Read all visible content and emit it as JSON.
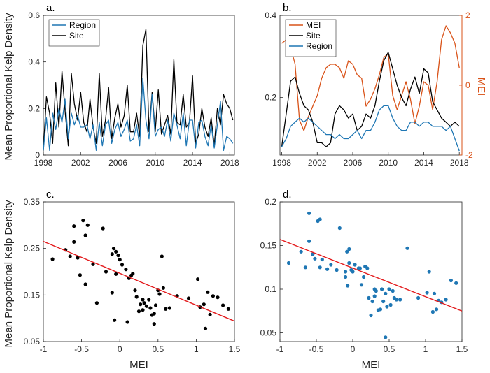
{
  "shared": {
    "ylabel": "Mean Proportional Kelp Density",
    "mei_label": "MEI"
  },
  "chart_data": [
    {
      "panel": "a.",
      "type": "line",
      "xlim": [
        1998,
        2018.5
      ],
      "ylim": [
        0,
        0.6
      ],
      "xticks": [
        "1998",
        "2002",
        "2006",
        "2010",
        "2014",
        "2018"
      ],
      "xtick_values": [
        1998,
        2002,
        2006,
        2010,
        2014,
        2018
      ],
      "yticks": [
        "0",
        "0.2",
        "0.4",
        "0.6"
      ],
      "ytick_values": [
        0,
        0.2,
        0.4,
        0.6
      ],
      "legend": {
        "position": "top-left",
        "entries": [
          "Region",
          "Site"
        ]
      },
      "series": [
        {
          "name": "Site",
          "color": "#000000",
          "x": [
            1998,
            1998.33,
            1998.67,
            1999,
            1999.33,
            1999.67,
            2000,
            2000.33,
            2000.67,
            2001,
            2001.33,
            2001.67,
            2002,
            2002.33,
            2002.67,
            2003,
            2003.33,
            2003.67,
            2004,
            2004.33,
            2004.67,
            2005,
            2005.33,
            2005.67,
            2006,
            2006.33,
            2006.67,
            2007,
            2007.33,
            2007.67,
            2008,
            2008.33,
            2008.67,
            2009,
            2009.33,
            2009.67,
            2010,
            2010.33,
            2010.67,
            2011,
            2011.33,
            2011.67,
            2012,
            2012.33,
            2012.67,
            2013,
            2013.33,
            2013.67,
            2014,
            2014.33,
            2014.67,
            2015,
            2015.33,
            2015.67,
            2016,
            2016.33,
            2016.67,
            2017,
            2017.33,
            2017.67,
            2018,
            2018.33
          ],
          "values": [
            0.02,
            0.25,
            0.18,
            0.05,
            0.31,
            0.12,
            0.36,
            0.19,
            0.04,
            0.35,
            0.22,
            0.15,
            0.27,
            0.14,
            0.1,
            0.24,
            0.12,
            0.05,
            0.35,
            0.08,
            0.15,
            0.29,
            0.07,
            0.16,
            0.22,
            0.12,
            0.17,
            0.3,
            0.1,
            0.1,
            0.18,
            0.08,
            0.47,
            0.54,
            0.1,
            0.27,
            0.1,
            0.28,
            0.09,
            0.13,
            0.17,
            0.09,
            0.41,
            0.14,
            0.13,
            0.26,
            0.12,
            0.14,
            0.34,
            0.05,
            0.09,
            0.2,
            0.12,
            0.08,
            0.16,
            0.04,
            0.2,
            0.13,
            0.26,
            0.22,
            0.2,
            0.15
          ]
        },
        {
          "name": "Region",
          "color": "#1f77b4",
          "x": [
            1998,
            1998.33,
            1998.67,
            1999,
            1999.33,
            1999.67,
            2000,
            2000.33,
            2000.67,
            2001,
            2001.33,
            2001.67,
            2002,
            2002.33,
            2002.67,
            2003,
            2003.33,
            2003.67,
            2004,
            2004.33,
            2004.67,
            2005,
            2005.33,
            2005.67,
            2006,
            2006.33,
            2006.67,
            2007,
            2007.33,
            2007.67,
            2008,
            2008.33,
            2008.67,
            2009,
            2009.33,
            2009.67,
            2010,
            2010.33,
            2010.67,
            2011,
            2011.33,
            2011.67,
            2012,
            2012.33,
            2012.67,
            2013,
            2013.33,
            2013.67,
            2014,
            2014.33,
            2014.67,
            2015,
            2015.33,
            2015.67,
            2016,
            2016.33,
            2016.67,
            2017,
            2017.33,
            2017.67,
            2018,
            2018.33
          ],
          "values": [
            0.02,
            0.16,
            0.02,
            0.18,
            0.11,
            0.2,
            0.14,
            0.24,
            0.07,
            0.18,
            0.13,
            0.17,
            0.12,
            0.12,
            0.13,
            0.07,
            0.13,
            0.02,
            0.14,
            0.04,
            0.13,
            0.15,
            0.05,
            0.11,
            0.14,
            0.08,
            0.11,
            0.15,
            0.06,
            0.07,
            0.13,
            0.04,
            0.33,
            0.15,
            0.07,
            0.26,
            0.08,
            0.11,
            0.12,
            0.08,
            0.15,
            0.06,
            0.18,
            0.13,
            0.07,
            0.18,
            0.04,
            0.15,
            0.15,
            0.03,
            0.14,
            0.15,
            0.08,
            0.04,
            0.13,
            0.03,
            0.13,
            0.23,
            0.02,
            0.08,
            0.07,
            0.05
          ]
        }
      ]
    },
    {
      "panel": "b.",
      "type": "line",
      "xlim": [
        1997.8,
        2018.3
      ],
      "ylim": [
        0.06,
        0.4
      ],
      "ylim_right": [
        -2,
        2
      ],
      "xticks": [
        "1998",
        "2002",
        "2006",
        "2010",
        "2014",
        "2018"
      ],
      "xtick_values": [
        1998,
        2002,
        2006,
        2010,
        2014,
        2018
      ],
      "yticks": [
        "0.2",
        "0.4"
      ],
      "ytick_values": [
        0.2,
        0.4
      ],
      "yticks_right": [
        "-2",
        "0",
        "2"
      ],
      "ytick_values_right": [
        -2,
        0,
        2
      ],
      "legend": {
        "position": "top-left",
        "entries": [
          "MEI",
          "Site",
          "Region"
        ]
      },
      "series": [
        {
          "name": "MEI",
          "axis": "right",
          "color": "#d95319",
          "x": [
            1998,
            1998.5,
            1999,
            1999.5,
            2000,
            2000.5,
            2001,
            2001.5,
            2002,
            2002.5,
            2003,
            2003.5,
            2004,
            2004.5,
            2005,
            2005.5,
            2006,
            2006.5,
            2007,
            2007.5,
            2008,
            2008.5,
            2009,
            2009.5,
            2010,
            2010.5,
            2011,
            2011.5,
            2012,
            2012.5,
            2013,
            2013.5,
            2014,
            2014.5,
            2015,
            2015.5,
            2016,
            2016.5,
            2017,
            2017.5,
            2018
          ],
          "values": [
            1.2,
            1.3,
            1.1,
            0.6,
            -1.0,
            -1.3,
            -0.9,
            -0.6,
            -0.3,
            0.2,
            0.5,
            0.6,
            0.6,
            0.5,
            0.2,
            0.7,
            0.6,
            0.3,
            0.2,
            -0.6,
            -0.4,
            -0.1,
            0.3,
            0.8,
            0.9,
            -0.3,
            -0.7,
            -0.3,
            0.1,
            -0.4,
            -1.1,
            -0.6,
            0.1,
            0.0,
            -0.7,
            0.1,
            1.3,
            1.7,
            1.5,
            1.2,
            0.5
          ]
        },
        {
          "name": "Site",
          "axis": "left",
          "color": "#000000",
          "x": [
            1998,
            1998.5,
            1999,
            1999.5,
            2000,
            2000.5,
            2001,
            2001.5,
            2002,
            2002.5,
            2003,
            2003.5,
            2004,
            2004.5,
            2005,
            2005.5,
            2006,
            2006.5,
            2007,
            2007.5,
            2008,
            2008.5,
            2009,
            2009.5,
            2010,
            2010.5,
            2011,
            2011.5,
            2012,
            2012.5,
            2013,
            2013.5,
            2014,
            2014.5,
            2015,
            2015.5,
            2016,
            2016.5,
            2017,
            2017.5,
            2018
          ],
          "values": [
            0.08,
            0.16,
            0.24,
            0.25,
            0.21,
            0.18,
            0.17,
            0.14,
            0.09,
            0.09,
            0.08,
            0.09,
            0.16,
            0.18,
            0.17,
            0.15,
            0.16,
            0.12,
            0.13,
            0.16,
            0.15,
            0.18,
            0.24,
            0.29,
            0.31,
            0.27,
            0.23,
            0.2,
            0.18,
            0.22,
            0.25,
            0.21,
            0.27,
            0.26,
            0.19,
            0.17,
            0.15,
            0.14,
            0.13,
            0.14,
            0.13
          ]
        },
        {
          "name": "Region",
          "axis": "left",
          "color": "#1f77b4",
          "x": [
            1998,
            1998.5,
            1999,
            1999.5,
            2000,
            2000.5,
            2001,
            2001.5,
            2002,
            2002.5,
            2003,
            2003.5,
            2004,
            2004.5,
            2005,
            2005.5,
            2006,
            2006.5,
            2007,
            2007.5,
            2008,
            2008.5,
            2009,
            2009.5,
            2010,
            2010.5,
            2011,
            2011.5,
            2012,
            2012.5,
            2013,
            2013.5,
            2014,
            2014.5,
            2015,
            2015.5,
            2016,
            2016.5,
            2017,
            2017.5,
            2018
          ],
          "values": [
            0.08,
            0.1,
            0.13,
            0.14,
            0.15,
            0.14,
            0.15,
            0.14,
            0.13,
            0.12,
            0.11,
            0.11,
            0.1,
            0.11,
            0.1,
            0.1,
            0.11,
            0.12,
            0.1,
            0.12,
            0.12,
            0.14,
            0.17,
            0.18,
            0.18,
            0.15,
            0.13,
            0.12,
            0.12,
            0.14,
            0.14,
            0.13,
            0.14,
            0.14,
            0.13,
            0.13,
            0.13,
            0.12,
            0.13,
            0.1,
            0.07
          ]
        }
      ]
    },
    {
      "panel": "c.",
      "type": "scatter",
      "xlim": [
        -1,
        1.5
      ],
      "ylim": [
        0.05,
        0.35
      ],
      "xticks": [
        "-1",
        "-0.5",
        "0",
        "0.5",
        "1",
        "1.5"
      ],
      "xtick_values": [
        -1,
        -0.5,
        0,
        0.5,
        1,
        1.5
      ],
      "yticks": [
        "0.05",
        "0.15",
        "0.25",
        "0.35"
      ],
      "ytick_values": [
        0.05,
        0.15,
        0.25,
        0.35
      ],
      "xlabel": "MEI",
      "point_color": "#000000",
      "fit": {
        "color": "#e31a1c",
        "x": [
          -1,
          1.5
        ],
        "y": [
          0.265,
          0.094
        ]
      },
      "x": [
        -0.88,
        -0.71,
        -0.65,
        -0.6,
        -0.6,
        -0.55,
        -0.52,
        -0.48,
        -0.45,
        -0.45,
        -0.42,
        -0.35,
        -0.3,
        -0.22,
        -0.18,
        -0.1,
        -0.08,
        -0.07,
        -0.05,
        -0.05,
        -0.02,
        0,
        0.03,
        0.08,
        0.12,
        0.15,
        0.17,
        0.2,
        0.22,
        0.25,
        0.27,
        0.3,
        0.3,
        0.32,
        0.35,
        0.38,
        0.4,
        0.42,
        0.45,
        0.47,
        0.5,
        0.52,
        0.55,
        0.57,
        0.6,
        0.65,
        0.75,
        0.9,
        1.02,
        1.05,
        1.1,
        1.12,
        1.15,
        1.18,
        1.22,
        1.28,
        1.35,
        1.42,
        0.1,
        -0.1,
        0.45
      ],
      "y": [
        0.227,
        0.247,
        0.233,
        0.264,
        0.298,
        0.23,
        0.193,
        0.31,
        0.278,
        0.173,
        0.3,
        0.216,
        0.133,
        0.293,
        0.2,
        0.238,
        0.25,
        0.096,
        0.195,
        0.243,
        0.235,
        0.226,
        0.215,
        0.205,
        0.186,
        0.192,
        0.196,
        0.16,
        0.146,
        0.115,
        0.13,
        0.14,
        0.118,
        0.133,
        0.126,
        0.14,
        0.122,
        0.107,
        0.088,
        0.128,
        0.16,
        0.152,
        0.233,
        0.165,
        0.12,
        0.122,
        0.148,
        0.143,
        0.184,
        0.124,
        0.13,
        0.078,
        0.156,
        0.108,
        0.148,
        0.145,
        0.128,
        0.12,
        0.092,
        0.155,
        0.11
      ]
    },
    {
      "panel": "d.",
      "type": "scatter",
      "xlim": [
        -1,
        1.5
      ],
      "ylim": [
        0.04,
        0.2
      ],
      "xticks": [
        "-1",
        "-0.5",
        "0",
        "0.5",
        "1",
        "1.5"
      ],
      "xtick_values": [
        -1,
        -0.5,
        0,
        0.5,
        1,
        1.5
      ],
      "yticks": [
        "0.05",
        "0.1",
        "0.15",
        "0.2"
      ],
      "ytick_values": [
        0.05,
        0.1,
        0.15,
        0.2
      ],
      "xlabel": "MEI",
      "point_color": "#1f77b4",
      "fit": {
        "color": "#e31a1c",
        "x": [
          -1,
          1.5
        ],
        "y": [
          0.157,
          0.075
        ]
      },
      "x": [
        -0.88,
        -0.71,
        -0.65,
        -0.6,
        -0.6,
        -0.55,
        -0.52,
        -0.48,
        -0.45,
        -0.45,
        -0.42,
        -0.35,
        -0.3,
        -0.22,
        -0.18,
        -0.1,
        -0.08,
        -0.07,
        -0.05,
        -0.05,
        -0.02,
        0,
        0.03,
        0.08,
        0.12,
        0.15,
        0.17,
        0.2,
        0.22,
        0.25,
        0.27,
        0.3,
        0.3,
        0.32,
        0.35,
        0.38,
        0.4,
        0.42,
        0.45,
        0.47,
        0.5,
        0.52,
        0.55,
        0.57,
        0.6,
        0.65,
        0.75,
        0.9,
        1.02,
        1.05,
        1.1,
        1.12,
        1.15,
        1.18,
        1.22,
        1.28,
        1.35,
        1.42,
        0.1,
        -0.1,
        0.45
      ],
      "y": [
        0.13,
        0.143,
        0.125,
        0.155,
        0.187,
        0.14,
        0.135,
        0.178,
        0.18,
        0.125,
        0.134,
        0.123,
        0.128,
        0.122,
        0.17,
        0.12,
        0.143,
        0.104,
        0.146,
        0.13,
        0.122,
        0.12,
        0.128,
        0.124,
        0.105,
        0.114,
        0.126,
        0.124,
        0.09,
        0.07,
        0.086,
        0.1,
        0.092,
        0.098,
        0.076,
        0.077,
        0.1,
        0.086,
        0.045,
        0.08,
        0.1,
        0.082,
        0.098,
        0.09,
        0.088,
        0.088,
        0.147,
        0.09,
        0.096,
        0.12,
        0.074,
        0.095,
        0.077,
        0.087,
        0.085,
        0.088,
        0.11,
        0.107,
        0.124,
        0.114,
        0.095
      ]
    }
  ]
}
